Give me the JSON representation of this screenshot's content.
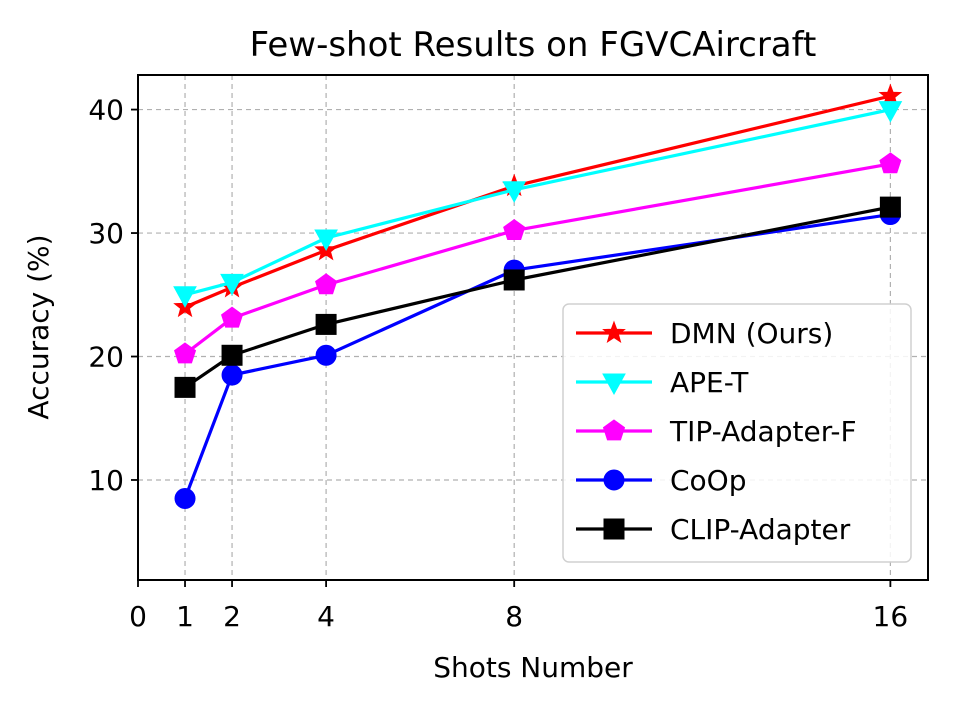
{
  "chart_data": {
    "type": "line",
    "title": "Few-shot Results on FGVCAircraft",
    "xlabel": "Shots Number",
    "ylabel": "Accuracy (%)",
    "x": [
      1,
      2,
      4,
      8,
      16
    ],
    "xticks": [
      0,
      1,
      2,
      4,
      8,
      16
    ],
    "yticks": [
      10,
      20,
      30,
      40
    ],
    "xlim": [
      0,
      16.8
    ],
    "ylim": [
      1.9,
      42.8
    ],
    "grid": true,
    "legend_position": "lower-right",
    "series": [
      {
        "name": "DMN (Ours)",
        "values": [
          24.0,
          25.6,
          28.6,
          33.8,
          41.1
        ],
        "color": "#ff0000",
        "marker": "star"
      },
      {
        "name": "APE-T",
        "values": [
          25.0,
          26.0,
          29.6,
          33.5,
          40.0
        ],
        "color": "#00ffff",
        "marker": "triangle-down"
      },
      {
        "name": "TIP-Adapter-F",
        "values": [
          20.2,
          23.1,
          25.8,
          30.2,
          35.6
        ],
        "color": "#ff00ff",
        "marker": "pentagon"
      },
      {
        "name": "CoOp",
        "values": [
          8.5,
          18.5,
          20.1,
          27.0,
          31.5
        ],
        "color": "#0000ff",
        "marker": "circle"
      },
      {
        "name": "CLIP-Adapter",
        "values": [
          17.5,
          20.1,
          22.6,
          26.2,
          32.1
        ],
        "color": "#000000",
        "marker": "square"
      }
    ]
  }
}
